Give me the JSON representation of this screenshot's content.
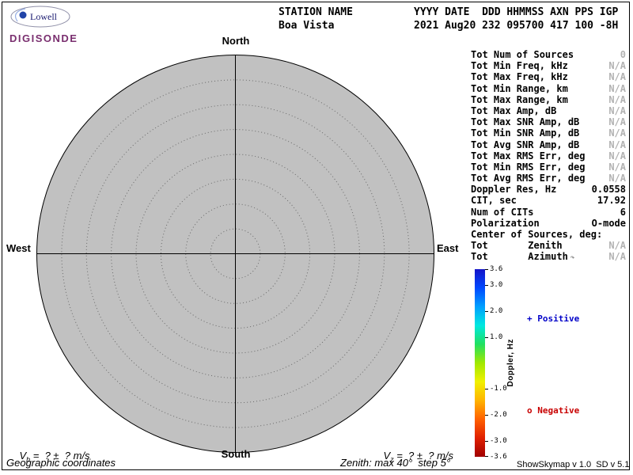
{
  "logo": {
    "name": "Lowell",
    "brand": "DIGISONDE",
    "brand_color": "#7a2f6f"
  },
  "header": {
    "station_label": "STATION NAME",
    "station_value": "Boa Vista",
    "fields_label": "YYYY DATE  DDD HHMMSS AXN PPS IGP",
    "fields_value": "2021 Aug20 232 095700 417 100 -8H"
  },
  "compass": {
    "north": "North",
    "south": "South",
    "east": "East",
    "west": "West"
  },
  "stats": {
    "rows": [
      {
        "label": "Tot Num of Sources",
        "value": "0",
        "muted": true
      },
      {
        "label": "Tot Min Freq, kHz",
        "value": "N/A",
        "muted": true
      },
      {
        "label": "Tot Max Freq, kHz",
        "value": "N/A",
        "muted": true
      },
      {
        "label": "Tot Min Range, km",
        "value": "N/A",
        "muted": true
      },
      {
        "label": "Tot Max Range, km",
        "value": "N/A",
        "muted": true
      },
      {
        "label": "Tot Max Amp, dB",
        "value": "N/A",
        "muted": true
      },
      {
        "label": "Tot Max SNR Amp, dB",
        "value": "N/A",
        "muted": true
      },
      {
        "label": "Tot Min SNR Amp, dB",
        "value": "N/A",
        "muted": true
      },
      {
        "label": "Tot Avg SNR Amp, dB",
        "value": "N/A",
        "muted": true
      },
      {
        "label": "Tot Max RMS Err, deg",
        "value": "N/A",
        "muted": true
      },
      {
        "label": "Tot Min RMS Err, deg",
        "value": "N/A",
        "muted": true
      },
      {
        "label": "Tot Avg RMS Err, deg",
        "value": "N/A",
        "muted": true
      },
      {
        "label": "Doppler Res, Hz",
        "value": "0.0558",
        "muted": false
      },
      {
        "label": "CIT, sec",
        "value": "17.92",
        "muted": false
      },
      {
        "label": "Num of CITs",
        "value": "6",
        "muted": false
      },
      {
        "label": "Polarization",
        "value": "O-mode",
        "muted": false
      },
      {
        "label": "Center of Sources, deg:",
        "value": "",
        "muted": false
      },
      {
        "label": "Tot       Zenith",
        "value": "N/A",
        "muted": true
      },
      {
        "label": "Tot       Azimuth",
        "value": "N/A",
        "muted": true,
        "icon": "↷"
      }
    ]
  },
  "legend": {
    "positive": "+ Positive",
    "negative": "o Negative",
    "positive_color": "#0000c8",
    "negative_color": "#c80000"
  },
  "footer": {
    "v_symbol": "V",
    "vh_sub": "h",
    "vz_sub": "z",
    "v_value": " =  ? ±  ? m/s",
    "coordinates": "Geographic coordinates",
    "zenith_note": "Zenith: max 40°  step 5°",
    "version": "ShowSkymap v 1.0  SD v 5.1"
  },
  "chart_data": {
    "type": "scatter",
    "projection": "polar-skymap",
    "station": "Boa Vista",
    "datetime": "2021 Aug20 232 095700",
    "compass_labels": [
      "North",
      "East",
      "South",
      "West"
    ],
    "zenith_max_deg": 40,
    "zenith_step_deg": 5,
    "num_sources": 0,
    "points": [],
    "colorbar": {
      "label": "Doppler, Hz",
      "min": -3.6,
      "max": 3.6,
      "ticks": [
        3.6,
        3.0,
        2.0,
        1.0,
        -1.0,
        -2.0,
        -3.0,
        -3.6
      ],
      "gradient": [
        "#1414c8",
        "#0048ff",
        "#00a0ff",
        "#00e8e0",
        "#20e060",
        "#a0e800",
        "#f0f000",
        "#ffb400",
        "#ff6000",
        "#e02000",
        "#a00000"
      ]
    }
  }
}
